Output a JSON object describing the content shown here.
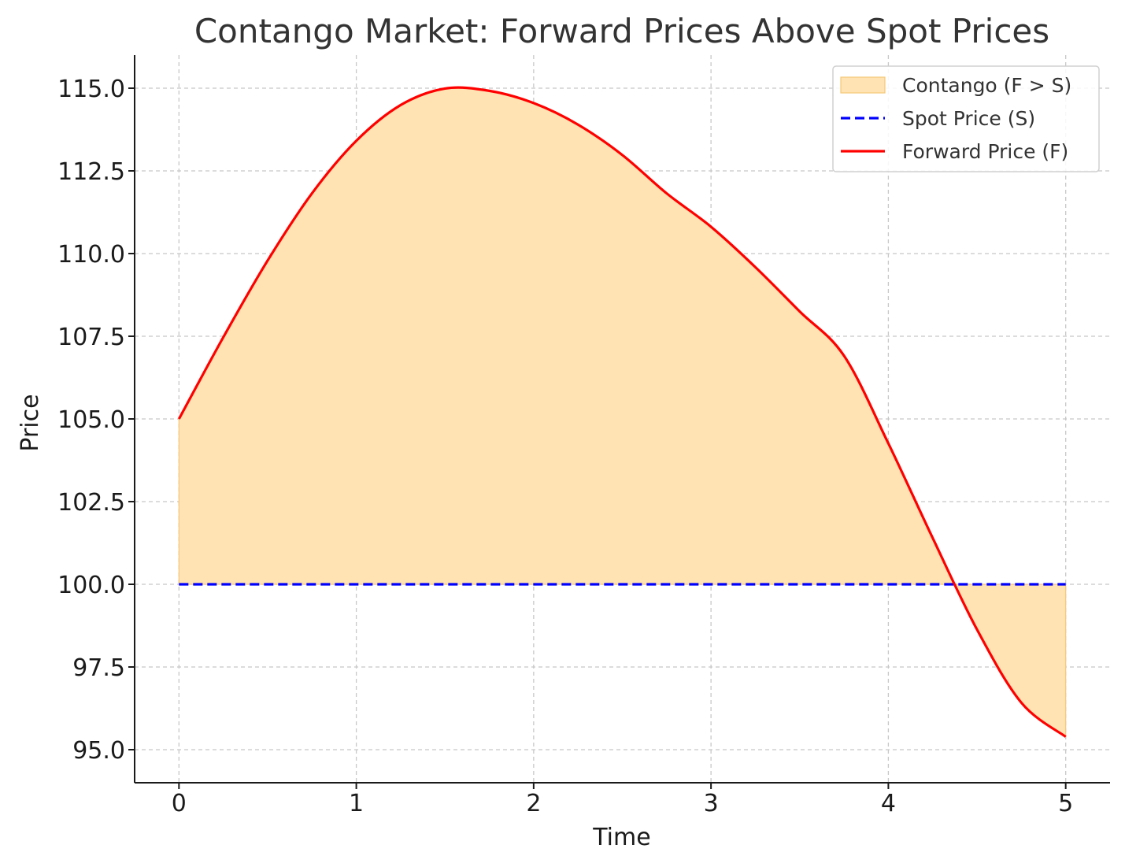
{
  "chart_data": {
    "type": "line",
    "title": "Contango Market: Forward Prices Above Spot Prices",
    "xlabel": "Time",
    "ylabel": "Price",
    "xlim": [
      -0.25,
      5.25
    ],
    "ylim": [
      94.0,
      116.0
    ],
    "x_ticks": [
      0,
      1,
      2,
      3,
      4,
      5
    ],
    "x_tick_labels": [
      "0",
      "1",
      "2",
      "3",
      "4",
      "5"
    ],
    "y_ticks": [
      95.0,
      97.5,
      100.0,
      102.5,
      105.0,
      107.5,
      110.0,
      112.5,
      115.0
    ],
    "y_tick_labels": [
      "95.0",
      "97.5",
      "100.0",
      "102.5",
      "105.0",
      "107.5",
      "110.0",
      "112.5",
      "115.0"
    ],
    "grid": true,
    "legend_position": "top-right",
    "x": [
      0,
      0.25,
      0.5,
      0.75,
      1.0,
      1.25,
      1.5,
      1.75,
      2.0,
      2.25,
      2.5,
      2.75,
      3.0,
      3.25,
      3.5,
      3.75,
      4.0,
      4.25,
      4.5,
      4.75,
      5.0
    ],
    "series": [
      {
        "name": "Spot Price (S)",
        "style": "dashed",
        "color": "#0000ff",
        "values": [
          100,
          100,
          100,
          100,
          100,
          100,
          100,
          100,
          100,
          100,
          100,
          100,
          100,
          100,
          100,
          100,
          100,
          100,
          100,
          100,
          100
        ]
      },
      {
        "name": "Forward Price (F)",
        "style": "solid",
        "color": "#ff0000",
        "values": [
          105.0,
          107.47,
          109.79,
          111.82,
          113.41,
          114.49,
          114.99,
          114.92,
          114.55,
          113.9,
          112.98,
          111.82,
          110.81,
          109.59,
          108.25,
          106.91,
          104.26,
          101.4,
          98.63,
          96.42,
          95.39
        ]
      }
    ],
    "fill": {
      "name": "Contango (F > S)",
      "between": [
        "Spot Price (S)",
        "Forward Price (F)"
      ],
      "color": "#ffe3b3",
      "edge_color": "#f5c777"
    }
  }
}
